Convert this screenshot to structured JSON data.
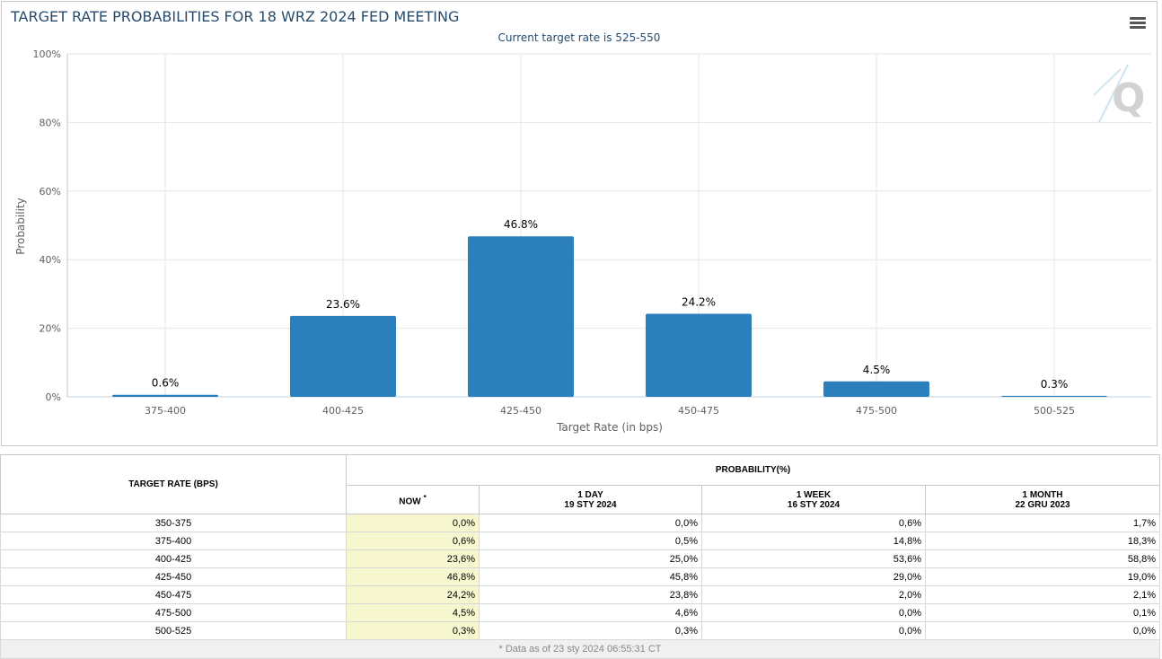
{
  "chart": {
    "title": "TARGET RATE PROBABILITIES FOR 18 WRZ 2024 FED MEETING",
    "subtitle": "Current target rate is 525-550"
  },
  "chart_data": {
    "type": "bar",
    "categories": [
      "375-400",
      "400-425",
      "425-450",
      "450-475",
      "475-500",
      "500-525"
    ],
    "values": [
      0.6,
      23.6,
      46.8,
      24.2,
      4.5,
      0.3
    ],
    "data_labels": [
      "0.6%",
      "23.6%",
      "46.8%",
      "24.2%",
      "4.5%",
      "0.3%"
    ],
    "xlabel": "Target Rate (in bps)",
    "ylabel": "Probability",
    "ylim": [
      0,
      100
    ],
    "yticks": [
      "0%",
      "20%",
      "40%",
      "60%",
      "80%",
      "100%"
    ],
    "ytick_values": [
      0,
      20,
      40,
      60,
      80,
      100
    ],
    "bar_color": "#2b7fba",
    "grid": true
  },
  "table": {
    "rate_header": "TARGET RATE (BPS)",
    "prob_header": "PROBABILITY(%)",
    "col_now": "NOW",
    "col_now_mark": "*",
    "col_day": "1 DAY",
    "col_day_date": "19 STY 2024",
    "col_week": "1 WEEK",
    "col_week_date": "16 STY 2024",
    "col_month": "1 MONTH",
    "col_month_date": "22 GRU 2023",
    "rows": [
      [
        "350-375",
        "0,0%",
        "0,0%",
        "0,6%",
        "1,7%"
      ],
      [
        "375-400",
        "0,6%",
        "0,5%",
        "14,8%",
        "18,3%"
      ],
      [
        "400-425",
        "23,6%",
        "25,0%",
        "53,6%",
        "58,8%"
      ],
      [
        "425-450",
        "46,8%",
        "45,8%",
        "29,0%",
        "19,0%"
      ],
      [
        "450-475",
        "24,2%",
        "23,8%",
        "2,0%",
        "2,1%"
      ],
      [
        "475-500",
        "4,5%",
        "4,6%",
        "0,0%",
        "0,1%"
      ],
      [
        "500-525",
        "0,3%",
        "0,3%",
        "0,0%",
        "0,0%"
      ]
    ],
    "footnote": "* Data as of 23 sty 2024 06:55:31 CT"
  },
  "colors": {
    "title": "#274b6d",
    "bar": "#2b7fba",
    "now_column": "#f7f7cf"
  }
}
